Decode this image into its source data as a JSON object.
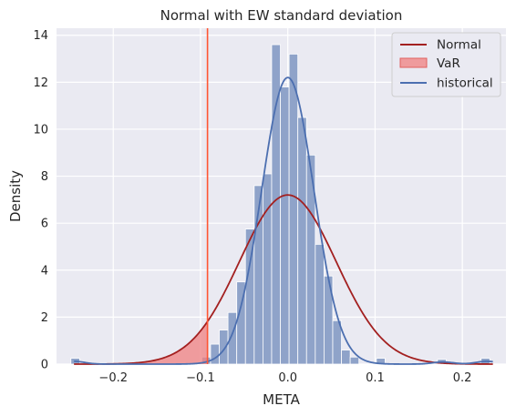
{
  "chart_data": {
    "type": "histogram",
    "title": "Normal with EW standard deviation",
    "xlabel": "META",
    "ylabel": "Density",
    "xlim": [
      -0.265,
      0.25
    ],
    "ylim": [
      0,
      14.3
    ],
    "xticks": [
      -0.2,
      -0.1,
      0.0,
      0.1,
      0.2
    ],
    "xtick_labels": [
      "−0.2",
      "−0.1",
      "0.0",
      "0.1",
      "0.2"
    ],
    "yticks": [
      0,
      2,
      4,
      6,
      8,
      10,
      12,
      14
    ],
    "ytick_labels": [
      "0",
      "2",
      "4",
      "6",
      "8",
      "10",
      "12",
      "14"
    ],
    "grid": true,
    "legend_placement": "top-right",
    "histogram": {
      "color": "#8fa3c9",
      "bins": [
        {
          "x0": -0.2485,
          "x1": -0.2385,
          "density": 0.25
        },
        {
          "x0": -0.0985,
          "x1": -0.0885,
          "density": 0.3
        },
        {
          "x0": -0.0885,
          "x1": -0.0785,
          "density": 0.85
        },
        {
          "x0": -0.0785,
          "x1": -0.0685,
          "density": 1.45
        },
        {
          "x0": -0.0685,
          "x1": -0.0585,
          "density": 2.2
        },
        {
          "x0": -0.0585,
          "x1": -0.0485,
          "density": 3.5
        },
        {
          "x0": -0.0485,
          "x1": -0.0385,
          "density": 5.75
        },
        {
          "x0": -0.0385,
          "x1": -0.0285,
          "density": 7.6
        },
        {
          "x0": -0.0285,
          "x1": -0.0185,
          "density": 8.1
        },
        {
          "x0": -0.0185,
          "x1": -0.0085,
          "density": 13.6
        },
        {
          "x0": -0.0085,
          "x1": 0.0015,
          "density": 11.8
        },
        {
          "x0": 0.0015,
          "x1": 0.0115,
          "density": 13.2
        },
        {
          "x0": 0.0115,
          "x1": 0.0215,
          "density": 10.5
        },
        {
          "x0": 0.0215,
          "x1": 0.0315,
          "density": 8.9
        },
        {
          "x0": 0.0315,
          "x1": 0.0415,
          "density": 5.1
        },
        {
          "x0": 0.0415,
          "x1": 0.0515,
          "density": 3.75
        },
        {
          "x0": 0.0515,
          "x1": 0.0615,
          "density": 1.85
        },
        {
          "x0": 0.0615,
          "x1": 0.0715,
          "density": 0.6
        },
        {
          "x0": 0.0715,
          "x1": 0.0815,
          "density": 0.3
        },
        {
          "x0": 0.1015,
          "x1": 0.1115,
          "density": 0.25
        },
        {
          "x0": 0.1715,
          "x1": 0.1815,
          "density": 0.2
        },
        {
          "x0": 0.2215,
          "x1": 0.2315,
          "density": 0.25
        }
      ]
    },
    "series": [
      {
        "name": "Normal",
        "kind": "normal_pdf",
        "mean": 0.0,
        "peak": 7.2,
        "color": "#a32020",
        "x_range": [
          -0.245,
          0.235
        ]
      },
      {
        "name": "VaR",
        "kind": "tail_fill",
        "threshold": -0.092,
        "color": "#f08080"
      },
      {
        "name": "historical",
        "kind": "kde",
        "color": "#4c6fb0",
        "x_range": [
          -0.245,
          0.235
        ],
        "components": [
          {
            "mean": 0.0,
            "peak": 12.2,
            "width": 0.03
          },
          {
            "mean": -0.245,
            "peak": 0.12,
            "width": 0.012
          },
          {
            "mean": 0.178,
            "peak": 0.09,
            "width": 0.012
          },
          {
            "mean": 0.228,
            "peak": 0.12,
            "width": 0.012
          }
        ]
      }
    ],
    "vline": {
      "x": -0.092,
      "color": "#ff5533"
    }
  }
}
